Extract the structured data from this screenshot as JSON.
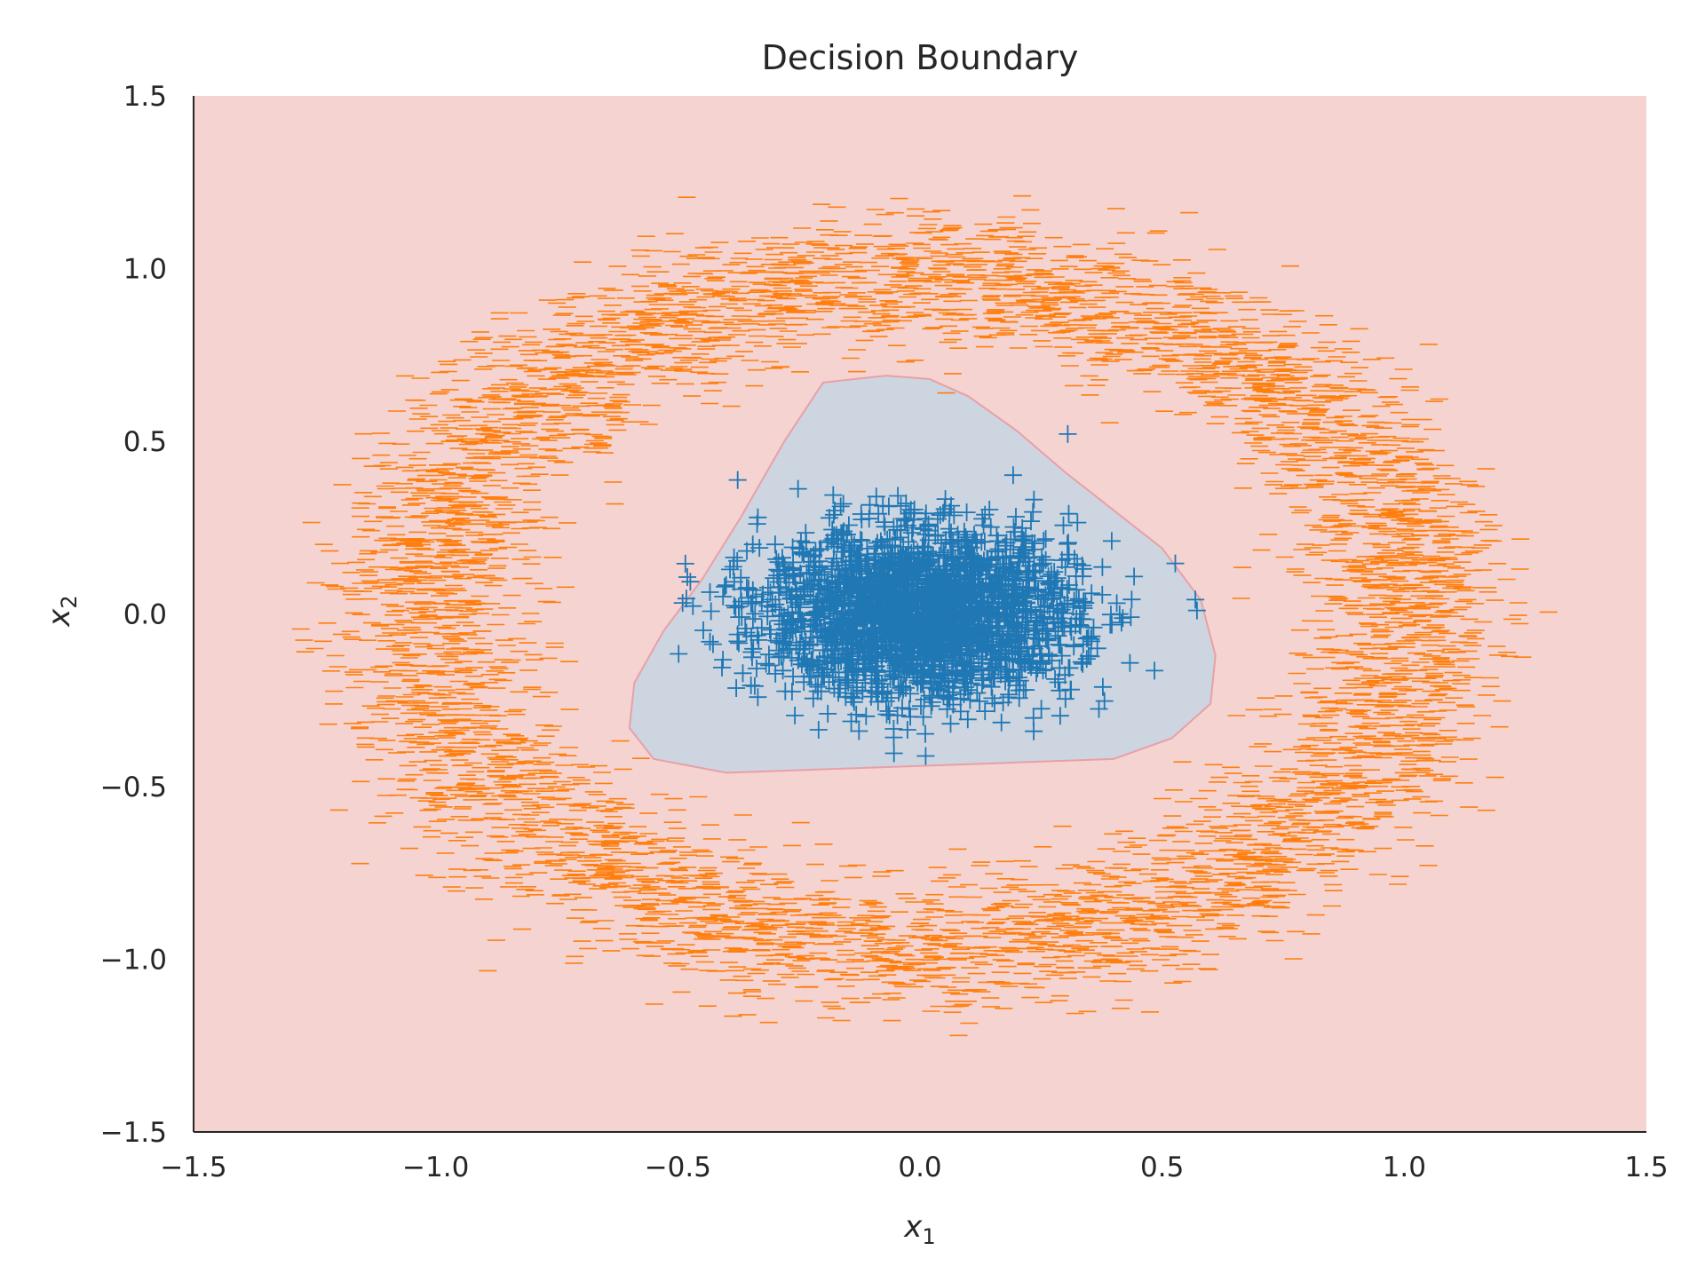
{
  "chart_data": {
    "type": "scatter",
    "title": "Decision Boundary",
    "xlabel": {
      "symbol": "x",
      "subscript": "1"
    },
    "ylabel": {
      "symbol": "x",
      "subscript": "2"
    },
    "xlim": [
      -1.5,
      1.5
    ],
    "ylim": [
      -1.5,
      1.5
    ],
    "xticks": [
      -1.5,
      -1.0,
      -0.5,
      0.0,
      0.5,
      1.0,
      1.5
    ],
    "yticks": [
      -1.5,
      -1.0,
      -0.5,
      0.0,
      0.5,
      1.0,
      1.5
    ],
    "xtick_labels": [
      "−1.5",
      "−1.0",
      "−0.5",
      "0.0",
      "0.5",
      "1.0",
      "1.5"
    ],
    "ytick_labels": [
      "−1.5",
      "−1.0",
      "−0.5",
      "0.0",
      "0.5",
      "1.0",
      "1.5"
    ],
    "grid": false,
    "legend": "none",
    "colors": {
      "outer_region": "#f4d3d1",
      "inner_region": "#cdd5e0",
      "boundary_edge": "#e8a0a8",
      "inner_points": "#1f77b4",
      "outer_points": "#ff7f0e",
      "axis": "#262626"
    },
    "decision_boundary": {
      "inner_class_polygon": [
        [
          -0.2,
          0.67
        ],
        [
          -0.07,
          0.69
        ],
        [
          0.02,
          0.68
        ],
        [
          0.1,
          0.63
        ],
        [
          0.2,
          0.53
        ],
        [
          0.3,
          0.41
        ],
        [
          0.4,
          0.3
        ],
        [
          0.5,
          0.19
        ],
        [
          0.58,
          0.04
        ],
        [
          0.61,
          -0.12
        ],
        [
          0.6,
          -0.26
        ],
        [
          0.52,
          -0.36
        ],
        [
          0.4,
          -0.42
        ],
        [
          0.2,
          -0.43
        ],
        [
          0.0,
          -0.44
        ],
        [
          -0.2,
          -0.45
        ],
        [
          -0.4,
          -0.46
        ],
        [
          -0.55,
          -0.42
        ],
        [
          -0.6,
          -0.33
        ],
        [
          -0.59,
          -0.2
        ],
        [
          -0.53,
          -0.05
        ],
        [
          -0.45,
          0.1
        ],
        [
          -0.37,
          0.28
        ],
        [
          -0.28,
          0.5
        ]
      ]
    },
    "series": [
      {
        "marker": "+",
        "color": "#1f77b4",
        "center": [
          0.0,
          0.0
        ],
        "radius_x": 0.38,
        "radius_y": 0.32,
        "spread": 0.1,
        "count": 2600
      },
      {
        "marker": "_",
        "color": "#ff7f0e",
        "center": [
          0.0,
          0.0
        ],
        "radius_x": 1.02,
        "radius_y": 0.97,
        "spread": 0.1,
        "count": 5500
      }
    ]
  }
}
